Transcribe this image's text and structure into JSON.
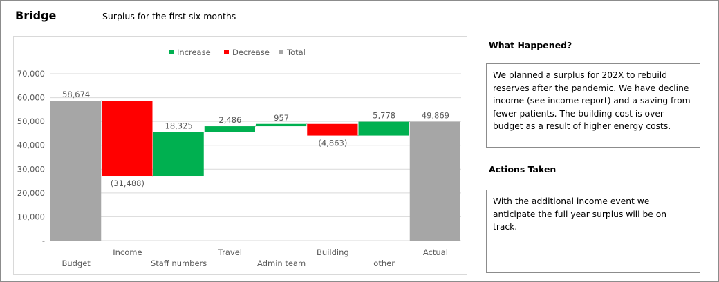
{
  "header": {
    "title": "Bridge",
    "subtitle": "Surplus for the first six months"
  },
  "panels": {
    "what_happened_heading": "What Happened?",
    "what_happened_text": "We planned a surplus for 202X to rebuild reserves after the pandemic.  We have decline income (see income report) and a saving from fewer patients. The building cost is over budget as a result of higher energy costs.",
    "actions_heading": "Actions Taken",
    "actions_text": "With the additional income event we anticipate the full year surplus will be on track."
  },
  "colors": {
    "increase": "#00b050",
    "decrease": "#ff0000",
    "total": "#a6a6a6",
    "connector": "#a6a6a6",
    "grid": "#d9d9d9"
  },
  "chart_data": {
    "type": "bar",
    "subtype": "waterfall",
    "legend": [
      "Increase",
      "Decrease",
      "Total"
    ],
    "legend_position": "top",
    "grid": true,
    "ylim": [
      0,
      70000
    ],
    "yticks": [
      0,
      10000,
      20000,
      30000,
      40000,
      50000,
      60000,
      70000
    ],
    "ytick_labels": [
      "-",
      "10,000",
      "20,000",
      "30,000",
      "40,000",
      "50,000",
      "60,000",
      "70,000"
    ],
    "categories": [
      "Budget",
      "Income",
      "Staff numbers",
      "Travel",
      "Admin team",
      "Building",
      "other",
      "Actual"
    ],
    "kinds": [
      "total",
      "decrease",
      "increase",
      "increase",
      "increase",
      "decrease",
      "increase",
      "total"
    ],
    "values": [
      58674,
      -31488,
      18325,
      2486,
      957,
      -4863,
      5778,
      49869
    ],
    "value_labels": [
      "58,674",
      "(31,488)",
      "18,325",
      "2,486",
      "957",
      "(4,863)",
      "5,778",
      "49,869"
    ]
  }
}
